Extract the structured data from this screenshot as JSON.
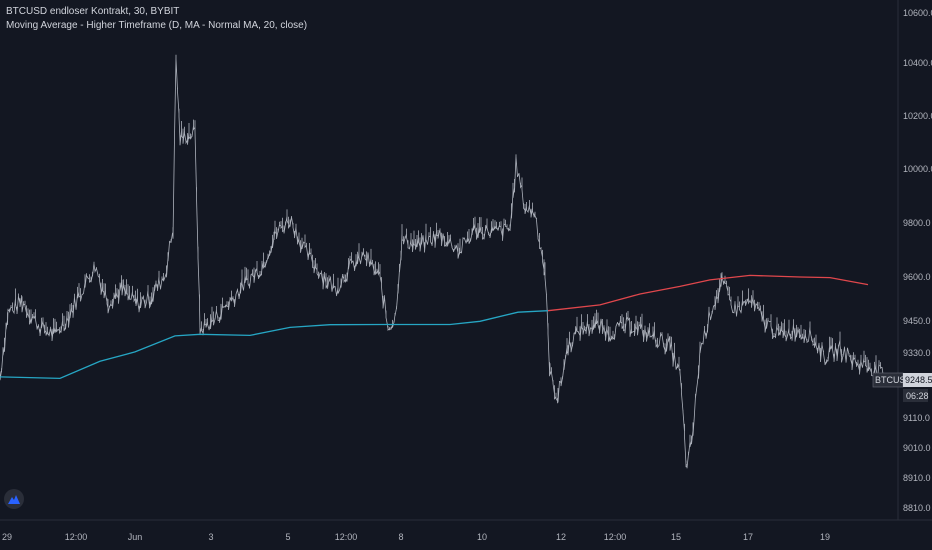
{
  "legend": {
    "symbol_line": "BTCUSD endloser Kontrakt, 30, BYBIT",
    "indicator_line": "Moving Average - Higher Timeframe (D, MA - Normal MA, 20, close)"
  },
  "price_tag": {
    "symbol": "BTCUSD",
    "price": "9248.5",
    "countdown": "06:28"
  },
  "colors": {
    "background": "#131722",
    "price_line": "#c8ccd6",
    "ma_lower": "#26a6c4",
    "ma_upper": "#e0474c"
  },
  "chart_data": {
    "type": "line",
    "title": "BTCUSD endloser Kontrakt, 30, BYBIT",
    "y_ticks": [
      "10600.0",
      "10400.0",
      "10200.0",
      "10000.0",
      "9800.0",
      "9600.0",
      "9450.0",
      "9330.0",
      "9110.0",
      "9010.0",
      "8910.0",
      "8810.0"
    ],
    "x_ticks": [
      "29",
      "12:00",
      "Jun",
      "3",
      "5",
      "12:00",
      "8",
      "10",
      "12",
      "12:00",
      "15",
      "17",
      "19"
    ],
    "ylim": [
      8770,
      10650
    ],
    "grid": false,
    "price_series_keypoints": [
      [
        0,
        9250
      ],
      [
        8,
        9480
      ],
      [
        22,
        9520
      ],
      [
        40,
        9430
      ],
      [
        55,
        9400
      ],
      [
        70,
        9480
      ],
      [
        82,
        9560
      ],
      [
        95,
        9640
      ],
      [
        108,
        9520
      ],
      [
        122,
        9560
      ],
      [
        136,
        9510
      ],
      [
        150,
        9530
      ],
      [
        165,
        9610
      ],
      [
        173,
        9780
      ],
      [
        176,
        10420
      ],
      [
        180,
        10120
      ],
      [
        195,
        10140
      ],
      [
        200,
        9420
      ],
      [
        215,
        9460
      ],
      [
        230,
        9520
      ],
      [
        245,
        9580
      ],
      [
        262,
        9640
      ],
      [
        275,
        9760
      ],
      [
        290,
        9820
      ],
      [
        305,
        9700
      ],
      [
        320,
        9620
      ],
      [
        335,
        9560
      ],
      [
        350,
        9640
      ],
      [
        365,
        9680
      ],
      [
        380,
        9600
      ],
      [
        388,
        9430
      ],
      [
        395,
        9460
      ],
      [
        402,
        9740
      ],
      [
        420,
        9720
      ],
      [
        440,
        9760
      ],
      [
        460,
        9700
      ],
      [
        475,
        9780
      ],
      [
        495,
        9770
      ],
      [
        510,
        9780
      ],
      [
        516,
        10020
      ],
      [
        525,
        9860
      ],
      [
        535,
        9840
      ],
      [
        545,
        9620
      ],
      [
        550,
        9260
      ],
      [
        558,
        9180
      ],
      [
        568,
        9360
      ],
      [
        580,
        9420
      ],
      [
        595,
        9440
      ],
      [
        610,
        9410
      ],
      [
        630,
        9440
      ],
      [
        650,
        9400
      ],
      [
        670,
        9360
      ],
      [
        680,
        9260
      ],
      [
        687,
        8930
      ],
      [
        694,
        9100
      ],
      [
        700,
        9340
      ],
      [
        712,
        9500
      ],
      [
        722,
        9580
      ],
      [
        735,
        9490
      ],
      [
        750,
        9520
      ],
      [
        765,
        9450
      ],
      [
        780,
        9400
      ],
      [
        795,
        9420
      ],
      [
        810,
        9400
      ],
      [
        825,
        9320
      ],
      [
        840,
        9350
      ],
      [
        855,
        9300
      ],
      [
        870,
        9290
      ],
      [
        885,
        9248
      ]
    ],
    "series": [
      {
        "name": "MA lower segment",
        "points": [
          [
            0,
            9249
          ],
          [
            60,
            9244
          ],
          [
            100,
            9302
          ],
          [
            135,
            9334
          ],
          [
            175,
            9394
          ],
          [
            200,
            9400
          ],
          [
            250,
            9396
          ],
          [
            290,
            9426
          ],
          [
            330,
            9436
          ],
          [
            390,
            9437
          ],
          [
            450,
            9437
          ],
          [
            480,
            9449
          ],
          [
            518,
            9480
          ],
          [
            548,
            9485
          ]
        ]
      },
      {
        "name": "MA upper segment",
        "points": [
          [
            548,
            9485
          ],
          [
            600,
            9505
          ],
          [
            640,
            9542
          ],
          [
            680,
            9568
          ],
          [
            710,
            9590
          ],
          [
            750,
            9606
          ],
          [
            800,
            9600
          ],
          [
            830,
            9598
          ],
          [
            868,
            9574
          ]
        ]
      }
    ]
  }
}
